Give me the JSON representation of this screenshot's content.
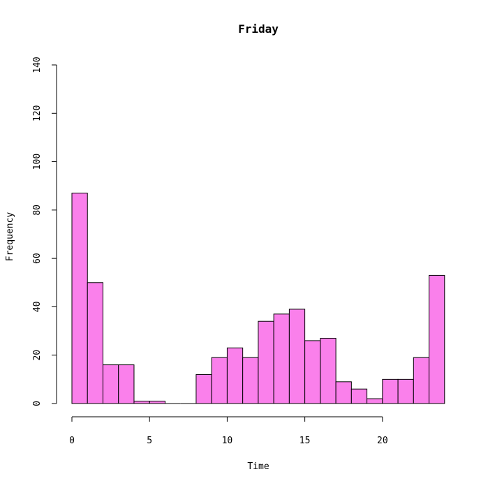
{
  "chart_data": {
    "type": "bar",
    "title": "Friday",
    "xlabel": "Time",
    "ylabel": "Frequency",
    "bar_color": "#fa80eb",
    "bin_width": 1,
    "bins": [
      {
        "x0": 0,
        "x1": 1,
        "count": 87
      },
      {
        "x0": 1,
        "x1": 2,
        "count": 50
      },
      {
        "x0": 2,
        "x1": 3,
        "count": 16
      },
      {
        "x0": 3,
        "x1": 4,
        "count": 16
      },
      {
        "x0": 4,
        "x1": 5,
        "count": 1
      },
      {
        "x0": 5,
        "x1": 6,
        "count": 1
      },
      {
        "x0": 6,
        "x1": 7,
        "count": 0
      },
      {
        "x0": 7,
        "x1": 8,
        "count": 0
      },
      {
        "x0": 8,
        "x1": 9,
        "count": 12
      },
      {
        "x0": 9,
        "x1": 10,
        "count": 19
      },
      {
        "x0": 10,
        "x1": 11,
        "count": 23
      },
      {
        "x0": 11,
        "x1": 12,
        "count": 19
      },
      {
        "x0": 12,
        "x1": 13,
        "count": 34
      },
      {
        "x0": 13,
        "x1": 14,
        "count": 37
      },
      {
        "x0": 14,
        "x1": 15,
        "count": 39
      },
      {
        "x0": 15,
        "x1": 16,
        "count": 26
      },
      {
        "x0": 16,
        "x1": 17,
        "count": 27
      },
      {
        "x0": 17,
        "x1": 18,
        "count": 9
      },
      {
        "x0": 18,
        "x1": 19,
        "count": 6
      },
      {
        "x0": 19,
        "x1": 20,
        "count": 2
      },
      {
        "x0": 20,
        "x1": 21,
        "count": 10
      },
      {
        "x0": 21,
        "x1": 22,
        "count": 10
      },
      {
        "x0": 22,
        "x1": 23,
        "count": 19
      },
      {
        "x0": 23,
        "x1": 24,
        "count": 53
      }
    ],
    "xlim": [
      0,
      24
    ],
    "ylim": [
      0,
      140
    ],
    "x_ticks": [
      "0",
      "5",
      "10",
      "15",
      "20"
    ],
    "y_ticks": [
      "0",
      "20",
      "40",
      "60",
      "80",
      "100",
      "120",
      "140"
    ],
    "grid": false,
    "legend": "none"
  }
}
